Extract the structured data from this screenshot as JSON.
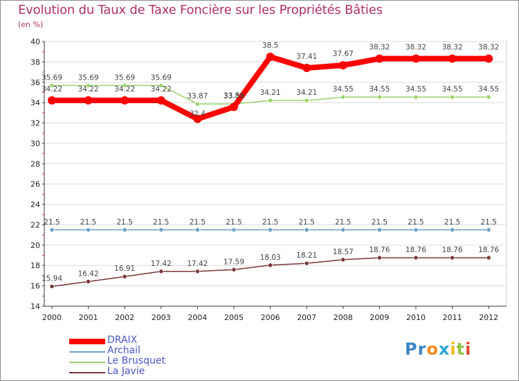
{
  "title": "Evolution du Taux de Taxe Foncière sur les Propriétés Bâties",
  "unit": "(en %)",
  "logo": {
    "parts": [
      "Pr",
      "o",
      "x",
      "i",
      "t",
      "i"
    ],
    "colors": [
      "#3a84c4",
      "#f08a1c",
      "#2aa6d8",
      "#f0b81c",
      "#8cc63f",
      "#e2452c"
    ]
  },
  "chart_data": {
    "type": "line",
    "title": "Evolution du Taux de Taxe Foncière sur les Propriétés Bâties",
    "ylabel": "(en %)",
    "xlabel": "",
    "ylim": [
      14,
      40
    ],
    "yticks": [
      14,
      16,
      18,
      20,
      22,
      24,
      26,
      28,
      30,
      32,
      34,
      36,
      38,
      40
    ],
    "categories": [
      "2000",
      "2001",
      "2002",
      "2003",
      "2004",
      "2005",
      "2006",
      "2007",
      "2008",
      "2009",
      "2010",
      "2011",
      "2012"
    ],
    "series": [
      {
        "name": "DRAIX",
        "color": "#ff0000",
        "values": [
          34.22,
          34.22,
          34.22,
          34.22,
          32.4,
          33.58,
          38.5,
          37.41,
          37.67,
          38.32,
          38.32,
          38.32,
          38.32
        ],
        "labels": [
          "34.22",
          "34.22",
          "34.22",
          "34.22",
          "32.4",
          "33.58",
          "38.5",
          "37.41",
          "37.67",
          "38.32",
          "38.32",
          "38.32",
          "38.32"
        ]
      },
      {
        "name": "Archail",
        "color": "#6d9fc6",
        "values": [
          21.5,
          21.5,
          21.5,
          21.5,
          21.5,
          21.5,
          21.5,
          21.5,
          21.5,
          21.5,
          21.5,
          21.5,
          21.5
        ],
        "labels": [
          "21.5",
          "21.5",
          "21.5",
          "21.5",
          "21.5",
          "21.5",
          "21.5",
          "21.5",
          "21.5",
          "21.5",
          "21.5",
          "21.5",
          "21.5"
        ]
      },
      {
        "name": "Le Brusquet",
        "color": "#9ad46a",
        "values": [
          35.69,
          35.69,
          35.69,
          35.69,
          33.87,
          33.87,
          34.21,
          34.21,
          34.55,
          34.55,
          34.55,
          34.55,
          34.55
        ],
        "labels": [
          "35.69",
          "35.69",
          "35.69",
          "35.69",
          "33.87",
          "33.87",
          "34.21",
          "34.21",
          "34.55",
          "34.55",
          "34.55",
          "34.55",
          "34.55"
        ]
      },
      {
        "name": "La Javie",
        "color": "#7a3535",
        "values": [
          15.94,
          16.42,
          16.91,
          17.42,
          17.42,
          17.59,
          18.03,
          18.21,
          18.57,
          18.76,
          18.76,
          18.76,
          18.76
        ],
        "labels": [
          "15.94",
          "16.42",
          "16.91",
          "17.42",
          "17.42",
          "17.59",
          "18.03",
          "18.21",
          "18.57",
          "18.76",
          "18.76",
          "18.76",
          "18.76"
        ]
      }
    ]
  }
}
